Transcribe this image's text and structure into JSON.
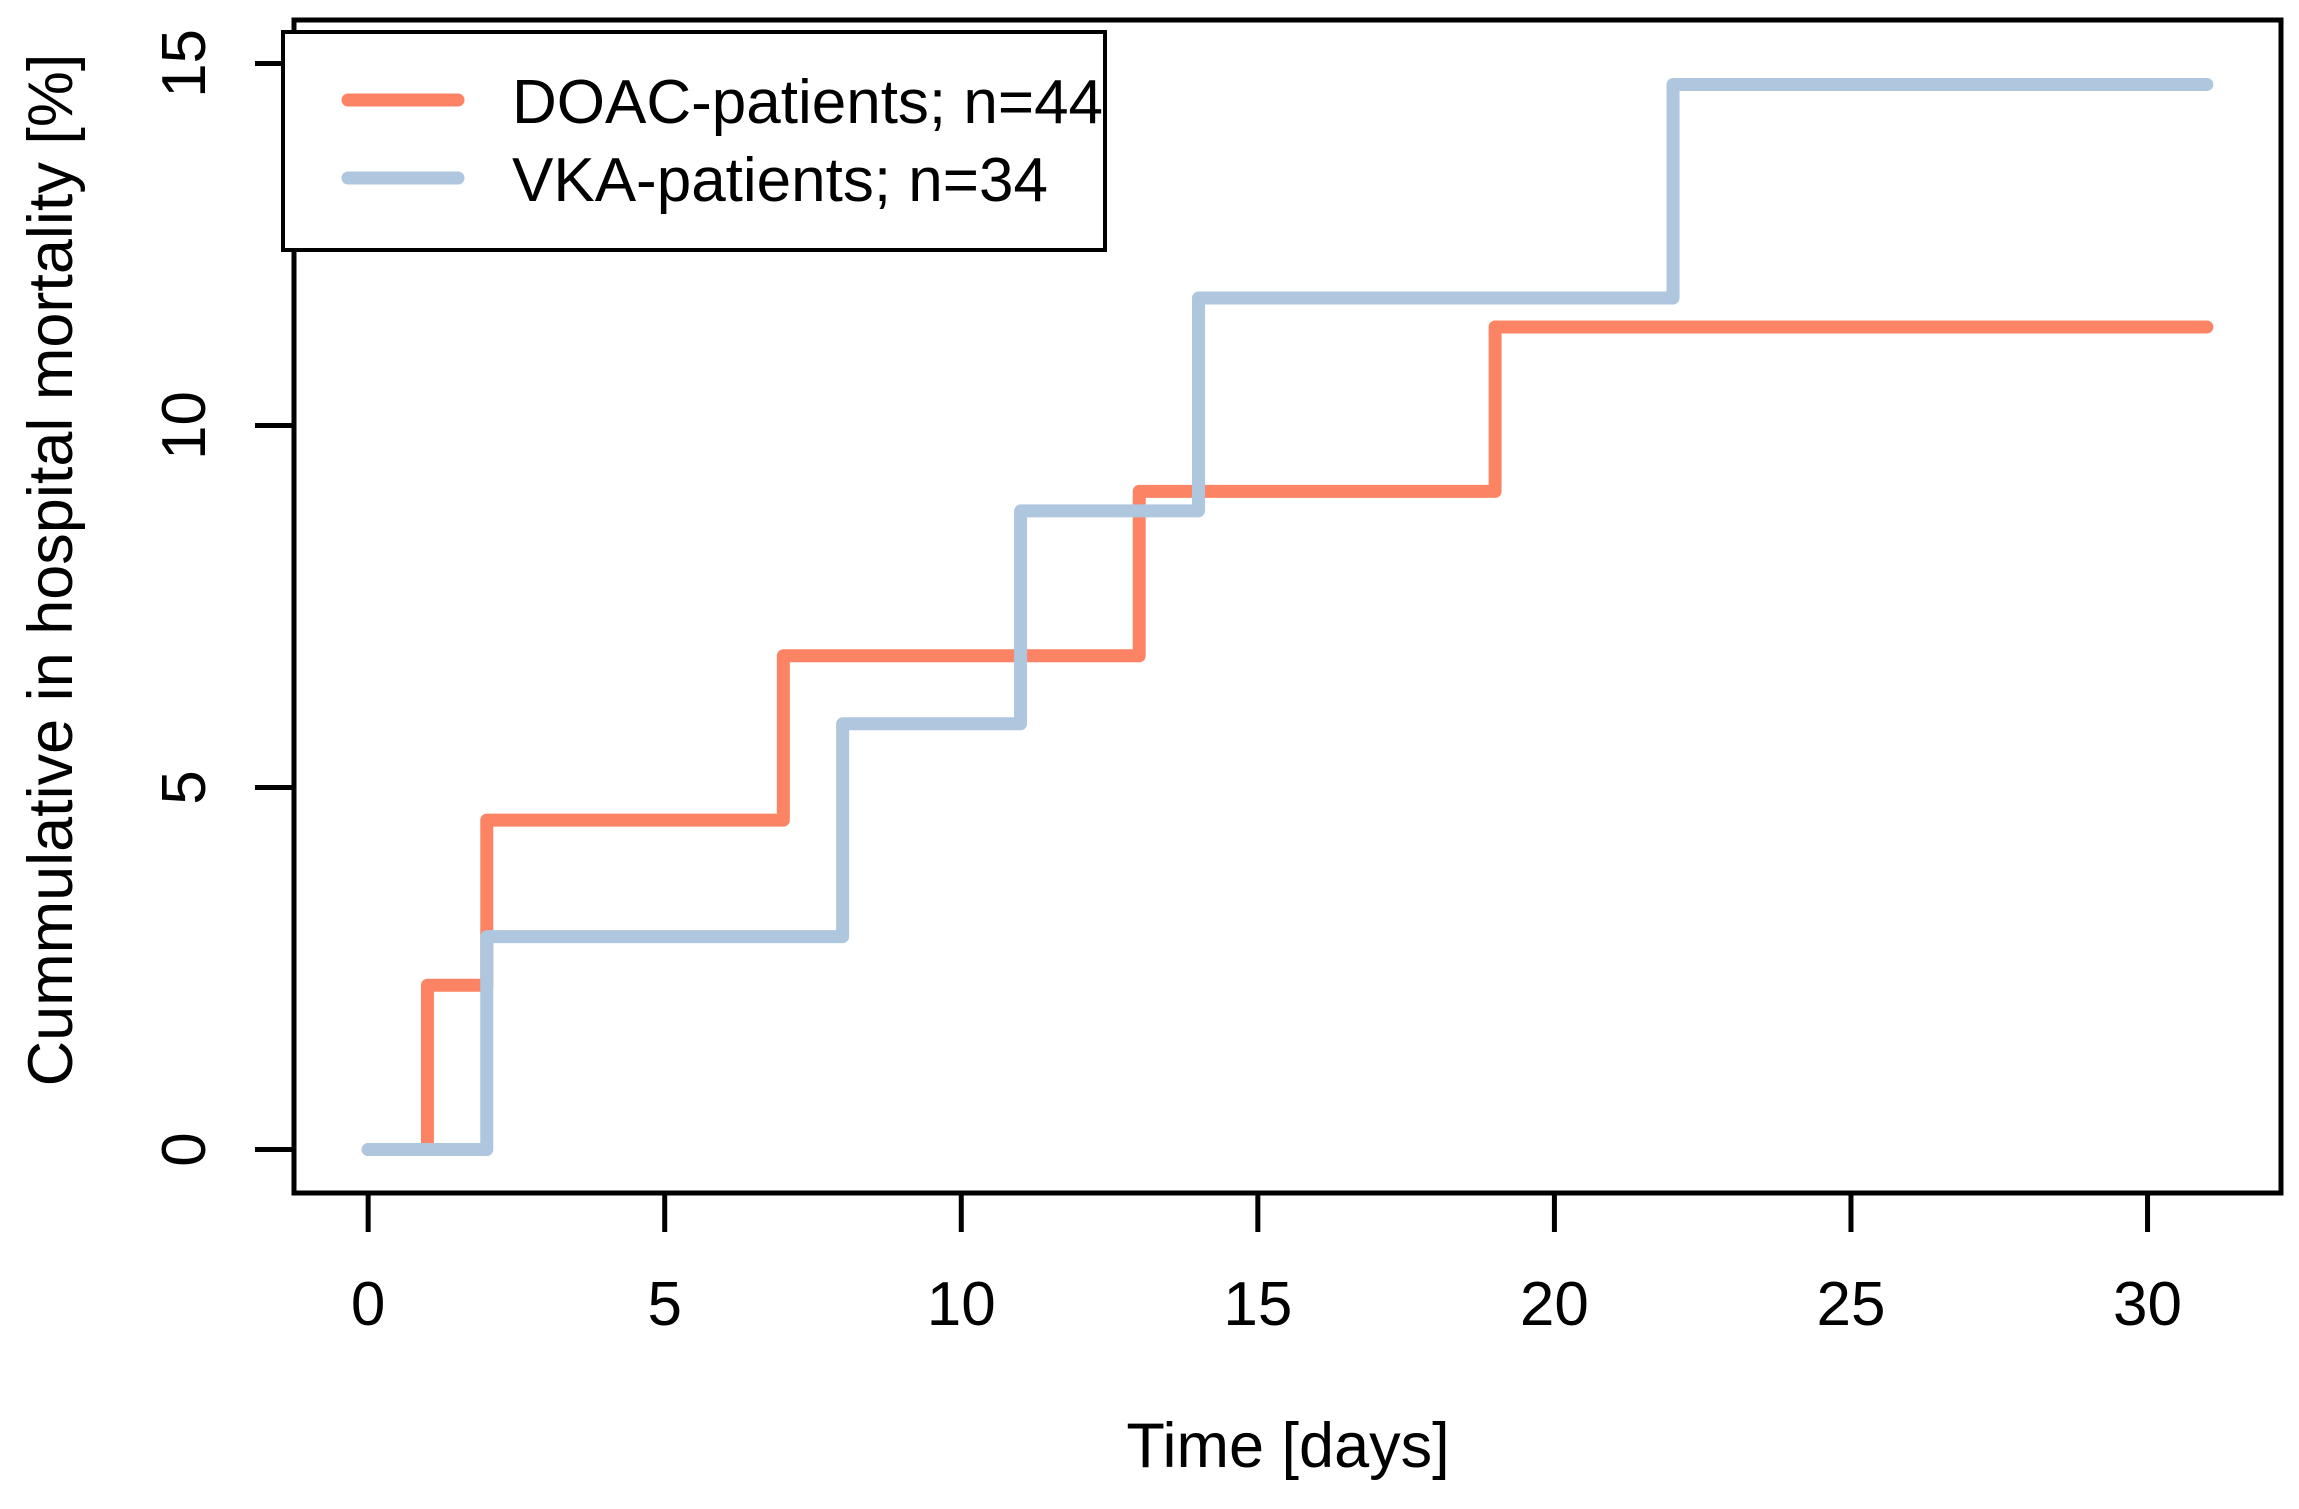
{
  "figure": {
    "background": "#FFFFFF",
    "axis_color": "#000000"
  },
  "chart_data": {
    "type": "line",
    "subtype": "step-after",
    "title": "",
    "xlabel": "Time [days]",
    "ylabel": "Cummulative in hospital mortality [%]",
    "xlim": [
      -1.25,
      32.25
    ],
    "ylim": [
      -0.6,
      15.6
    ],
    "xticks": [
      0,
      5,
      10,
      15,
      20,
      25,
      30
    ],
    "yticks": [
      0,
      5,
      10,
      15
    ],
    "grid": false,
    "legend_position": "top-left",
    "legend_border": true,
    "series": [
      {
        "name": "DOAC-patients; n=44",
        "color": "#FC8464",
        "x": [
          0,
          1,
          2,
          7,
          13,
          19,
          31
        ],
        "y": [
          0,
          2.27,
          4.55,
          6.82,
          9.09,
          11.36,
          11.36
        ]
      },
      {
        "name": "VKA-patients; n=34",
        "color": "#AEC6DE",
        "x": [
          0,
          2,
          8,
          11,
          14,
          22,
          31
        ],
        "y": [
          0,
          2.94,
          5.88,
          8.82,
          11.76,
          14.71,
          14.71
        ]
      }
    ]
  }
}
